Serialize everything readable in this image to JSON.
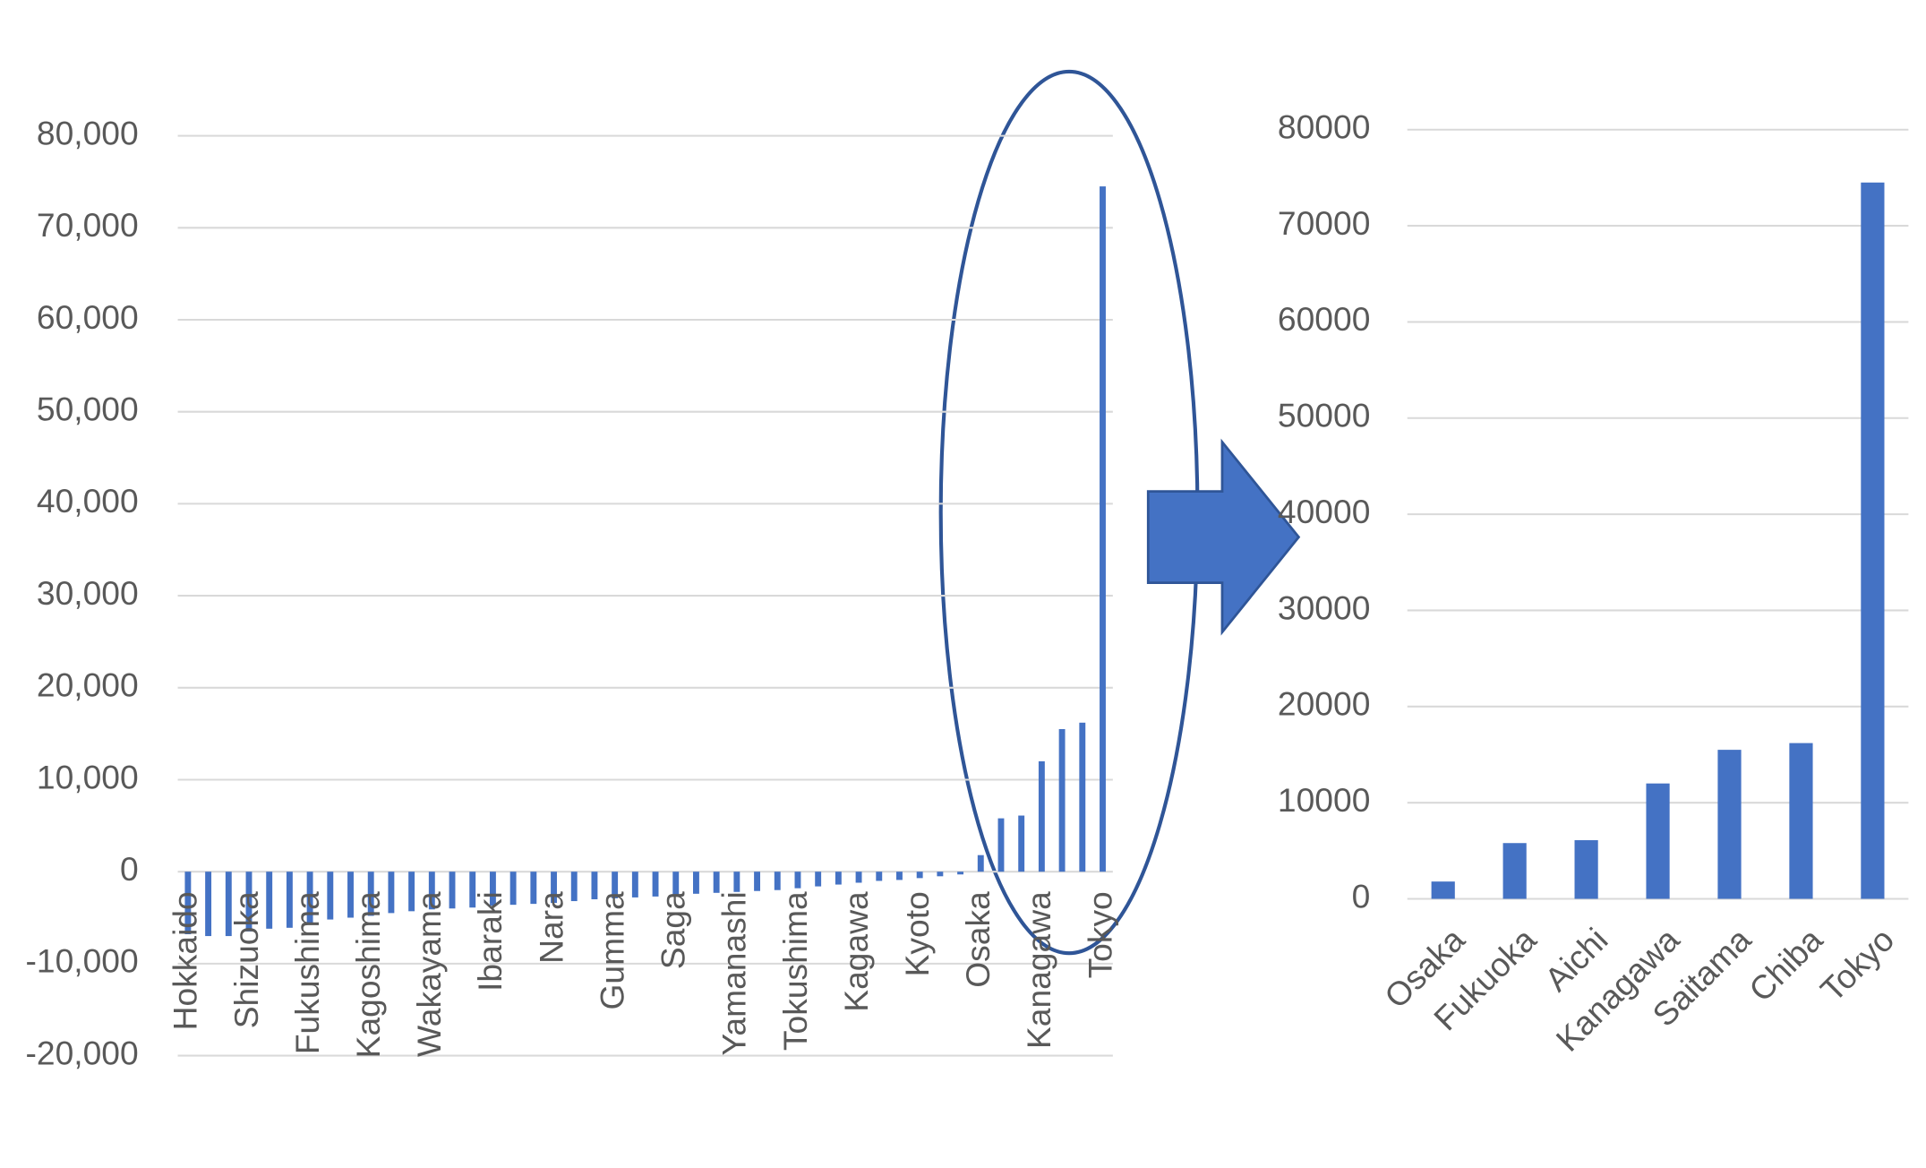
{
  "chart_data": [
    {
      "type": "bar",
      "categories": [
        "Hokkaido",
        null,
        null,
        "Shizuoka",
        null,
        null,
        "Fukushima",
        null,
        null,
        "Kagoshima",
        null,
        null,
        "Wakayama",
        null,
        null,
        "Ibaraki",
        null,
        null,
        "Nara",
        null,
        null,
        "Gumma",
        null,
        null,
        "Saga",
        null,
        null,
        "Yamanashi",
        null,
        null,
        "Tokushima",
        null,
        null,
        "Kagawa",
        null,
        null,
        "Kyoto",
        null,
        null,
        "Osaka",
        null,
        null,
        "Kanagawa",
        null,
        null,
        "Tokyo"
      ],
      "values": [
        -6800,
        -7000,
        -7000,
        -6500,
        -6200,
        -6100,
        -5600,
        -5200,
        -5000,
        -4800,
        -4500,
        -4300,
        -4100,
        -4000,
        -3900,
        -3700,
        -3600,
        -3500,
        -3400,
        -3200,
        -3000,
        -2900,
        -2800,
        -2700,
        -2500,
        -2400,
        -2300,
        -2200,
        -2100,
        -2000,
        -1800,
        -1600,
        -1400,
        -1200,
        -1000,
        -900,
        -700,
        -500,
        -300,
        1800,
        5800,
        6100,
        12000,
        15500,
        16200,
        74500
      ],
      "color": "#4472c4",
      "ylim": [
        -20000,
        80000
      ],
      "yticks": [
        {
          "value": -20000,
          "label": "-20,000"
        },
        {
          "value": -10000,
          "label": "-10,000"
        },
        0,
        {
          "value": 10000,
          "label": "10,000"
        },
        {
          "value": 20000,
          "label": "20,000"
        },
        {
          "value": 30000,
          "label": "30,000"
        },
        {
          "value": 40000,
          "label": "40,000"
        },
        {
          "value": 50000,
          "label": "50,000"
        },
        {
          "value": 60000,
          "label": "60,000"
        },
        {
          "value": 70000,
          "label": "70,000"
        },
        {
          "value": 80000,
          "label": "80,000"
        }
      ],
      "grid": true
    },
    {
      "type": "bar",
      "categories": [
        "Osaka",
        "Fukuoka",
        "Aichi",
        "Kanagawa",
        "Saitama",
        "Chiba",
        "Tokyo"
      ],
      "values": [
        1800,
        5800,
        6100,
        12000,
        15500,
        16200,
        74500
      ],
      "color": "#4472c4",
      "ylim": [
        0,
        80000
      ],
      "yticks": [
        0,
        10000,
        20000,
        30000,
        40000,
        50000,
        60000,
        70000,
        80000
      ],
      "grid": true
    }
  ]
}
